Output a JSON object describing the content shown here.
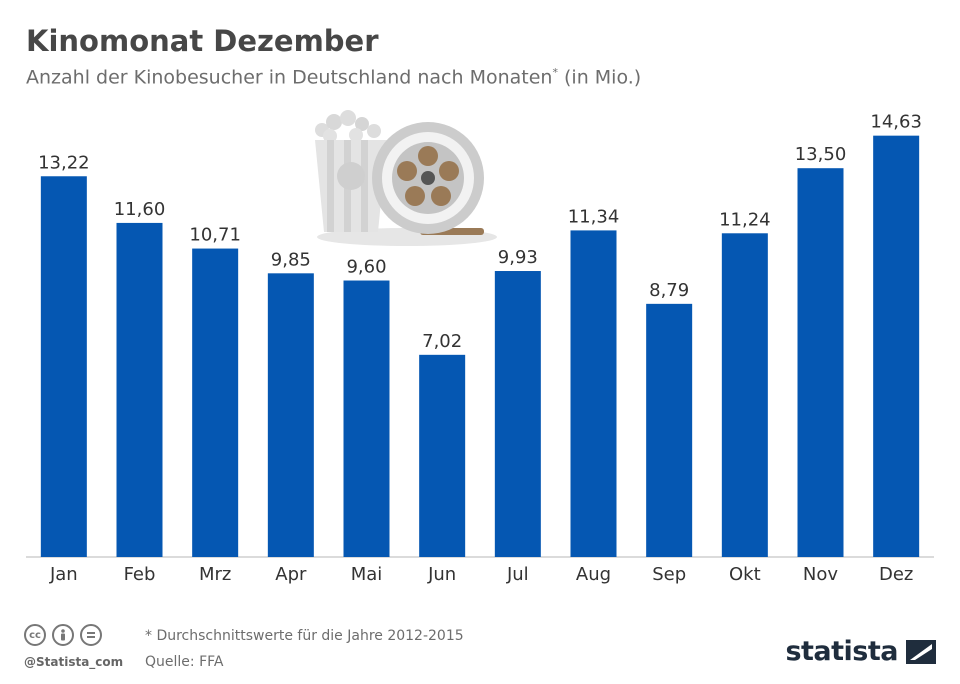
{
  "header": {
    "title": "Kinomonat Dezember",
    "subtitle": "Anzahl der Kinobesucher in Deutschland nach Monaten",
    "subtitle_mark": "*",
    "subtitle_unit": " (in Mio.)"
  },
  "footer": {
    "footnote": "* Durchschnittswerte für die Jahre 2012-2015",
    "source": "Quelle: FFA",
    "handle": "@Statista_com",
    "brand": "statista",
    "license_icons": [
      "cc-icon",
      "attribution-icon",
      "no-derivatives-icon"
    ]
  },
  "colors": {
    "bar": "#0557b2",
    "axis": "#cfcfcf",
    "label": "#333333",
    "illustration": "#cccccc",
    "reel_accent": "#9a7a57"
  },
  "illustration": {
    "icon": "popcorn-and-film-reel-icon"
  },
  "chart_data": {
    "type": "bar",
    "categories": [
      "Jan",
      "Feb",
      "Mrz",
      "Apr",
      "Mai",
      "Jun",
      "Jul",
      "Aug",
      "Sep",
      "Okt",
      "Nov",
      "Dez"
    ],
    "values": [
      13.22,
      11.6,
      10.71,
      9.85,
      9.6,
      7.02,
      9.93,
      11.34,
      8.79,
      11.24,
      13.5,
      14.63
    ],
    "value_labels": [
      "13,22",
      "11,60",
      "10,71",
      "9,85",
      "9,60",
      "7,02",
      "9,93",
      "11,34",
      "8,79",
      "11,24",
      "13,50",
      "14,63"
    ],
    "ylim": [
      0,
      15
    ],
    "grid": false,
    "legend": "none"
  }
}
